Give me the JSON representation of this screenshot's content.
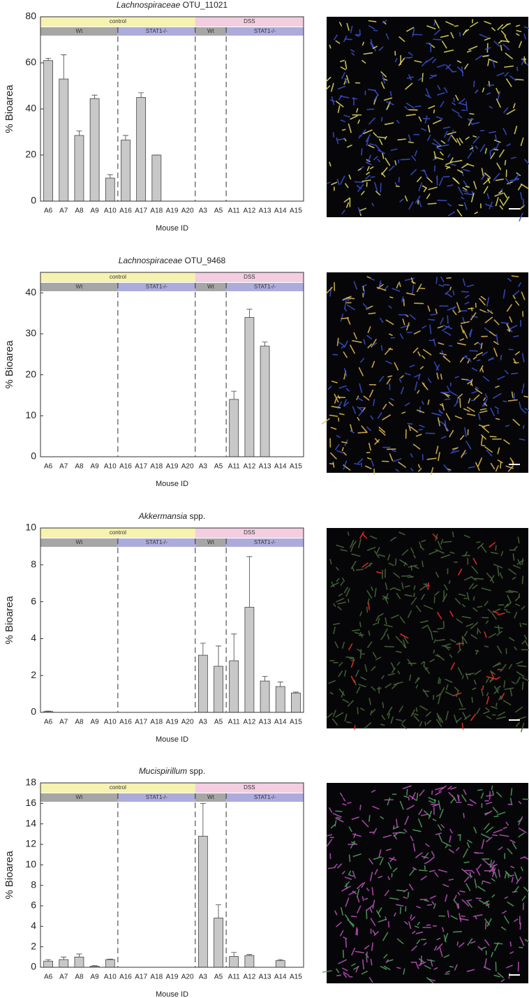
{
  "chart_data": [
    {
      "type": "bar",
      "genus": "Lachnospiraceae",
      "title": "OTU_11021",
      "xlabel": "Mouse ID",
      "ylabel": "% Bioarea",
      "categories": [
        "A6",
        "A7",
        "A8",
        "A9",
        "A10",
        "A16",
        "A17",
        "A18",
        "A19",
        "A20",
        "A3",
        "A5",
        "A11",
        "A12",
        "A13",
        "A14",
        "A15"
      ],
      "values": [
        61,
        53,
        28.5,
        44.5,
        10,
        26.5,
        45,
        20,
        0,
        0,
        0,
        0,
        0,
        0,
        0,
        0,
        0
      ],
      "errors": [
        1,
        10.5,
        2,
        1.5,
        1.5,
        2,
        2,
        0,
        0,
        0,
        0,
        0,
        0,
        0,
        0,
        0,
        0
      ],
      "color": "#c8c8c8",
      "ylim": [
        0,
        80
      ],
      "yticks": [
        0,
        20,
        40,
        60,
        80
      ],
      "groups": [
        {
          "label": "control",
          "from": "A6",
          "to": "A20",
          "subgroups": [
            {
              "label": "Wt",
              "from": "A6",
              "to": "A10"
            },
            {
              "label": "STAT1-/-",
              "from": "A16",
              "to": "A20"
            }
          ]
        },
        {
          "label": "DSS",
          "from": "A3",
          "to": "A15",
          "subgroups": [
            {
              "label": "Wt",
              "from": "A3",
              "to": "A5"
            },
            {
              "label": "STAT1-/-",
              "from": "A11",
              "to": "A15"
            }
          ]
        }
      ]
    },
    {
      "type": "bar",
      "genus": "Lachnospiraceae",
      "title": "OTU_9468",
      "xlabel": "Mouse ID",
      "ylabel": "% Bioarea",
      "categories": [
        "A6",
        "A7",
        "A8",
        "A9",
        "A10",
        "A16",
        "A17",
        "A18",
        "A19",
        "A20",
        "A3",
        "A5",
        "A11",
        "A12",
        "A13",
        "A14",
        "A15"
      ],
      "values": [
        0,
        0,
        0,
        0,
        0,
        0,
        0,
        0,
        0,
        0,
        0,
        0,
        14,
        34,
        27,
        0,
        0
      ],
      "errors": [
        0,
        0,
        0,
        0,
        0,
        0,
        0,
        0,
        0,
        0,
        0,
        0,
        2,
        2,
        1,
        0,
        0
      ],
      "color": "#c8c8c8",
      "ylim": [
        0,
        45
      ],
      "yticks": [
        0,
        10,
        20,
        30,
        40
      ],
      "groups": [
        {
          "label": "control",
          "from": "A6",
          "to": "A20",
          "subgroups": [
            {
              "label": "Wt",
              "from": "A6",
              "to": "A10"
            },
            {
              "label": "STAT1-/-",
              "from": "A16",
              "to": "A20"
            }
          ]
        },
        {
          "label": "DSS",
          "from": "A3",
          "to": "A15",
          "subgroups": [
            {
              "label": "Wt",
              "from": "A3",
              "to": "A5"
            },
            {
              "label": "STAT1-/-",
              "from": "A11",
              "to": "A15"
            }
          ]
        }
      ]
    },
    {
      "type": "bar",
      "genus": "Akkermansia",
      "title": "spp.",
      "xlabel": "Mouse ID",
      "ylabel": "% Bioarea",
      "categories": [
        "A6",
        "A7",
        "A8",
        "A9",
        "A10",
        "A16",
        "A17",
        "A18",
        "A19",
        "A20",
        "A3",
        "A5",
        "A11",
        "A12",
        "A13",
        "A14",
        "A15"
      ],
      "values": [
        0.05,
        0,
        0,
        0,
        0,
        0,
        0,
        0,
        0,
        0,
        3.1,
        2.5,
        2.8,
        5.7,
        1.7,
        1.4,
        1.05
      ],
      "errors": [
        0.02,
        0,
        0,
        0,
        0,
        0,
        0,
        0,
        0,
        0,
        0.65,
        1.1,
        1.45,
        2.75,
        0.25,
        0.25,
        0.05
      ],
      "color": "#c8c8c8",
      "ylim": [
        0,
        10
      ],
      "yticks": [
        0,
        2,
        4,
        6,
        8,
        10
      ],
      "groups": [
        {
          "label": "control",
          "from": "A6",
          "to": "A20",
          "subgroups": [
            {
              "label": "Wt",
              "from": "A6",
              "to": "A10"
            },
            {
              "label": "STAT1-/-",
              "from": "A16",
              "to": "A20"
            }
          ]
        },
        {
          "label": "DSS",
          "from": "A3",
          "to": "A15",
          "subgroups": [
            {
              "label": "Wt",
              "from": "A3",
              "to": "A5"
            },
            {
              "label": "STAT1-/-",
              "from": "A11",
              "to": "A15"
            }
          ]
        }
      ]
    },
    {
      "type": "bar",
      "genus": "Mucispirillum",
      "title": "spp.",
      "xlabel": "Mouse ID",
      "ylabel": "% Bioarea",
      "categories": [
        "A6",
        "A7",
        "A8",
        "A9",
        "A10",
        "A16",
        "A17",
        "A18",
        "A19",
        "A20",
        "A3",
        "A5",
        "A11",
        "A12",
        "A13",
        "A14",
        "A15"
      ],
      "values": [
        0.6,
        0.75,
        1.0,
        0.1,
        0.75,
        0,
        0,
        0,
        0,
        0,
        12.8,
        4.8,
        1.05,
        1.15,
        0,
        0.65,
        0
      ],
      "errors": [
        0.15,
        0.25,
        0.3,
        0.05,
        0.05,
        0,
        0,
        0,
        0,
        0,
        3.2,
        1.3,
        0.4,
        0.1,
        0,
        0.1,
        0
      ],
      "color": "#c8c8c8",
      "ylim": [
        0,
        18
      ],
      "yticks": [
        0,
        2,
        4,
        6,
        8,
        10,
        12,
        14,
        16,
        18
      ],
      "groups": [
        {
          "label": "control",
          "from": "A6",
          "to": "A20",
          "subgroups": [
            {
              "label": "Wt",
              "from": "A6",
              "to": "A10"
            },
            {
              "label": "STAT1-/-",
              "from": "A16",
              "to": "A20"
            }
          ]
        },
        {
          "label": "DSS",
          "from": "A3",
          "to": "A15",
          "subgroups": [
            {
              "label": "Wt",
              "from": "A3",
              "to": "A5"
            },
            {
              "label": "STAT1-/-",
              "from": "A11",
              "to": "A15"
            }
          ]
        }
      ]
    }
  ]
}
